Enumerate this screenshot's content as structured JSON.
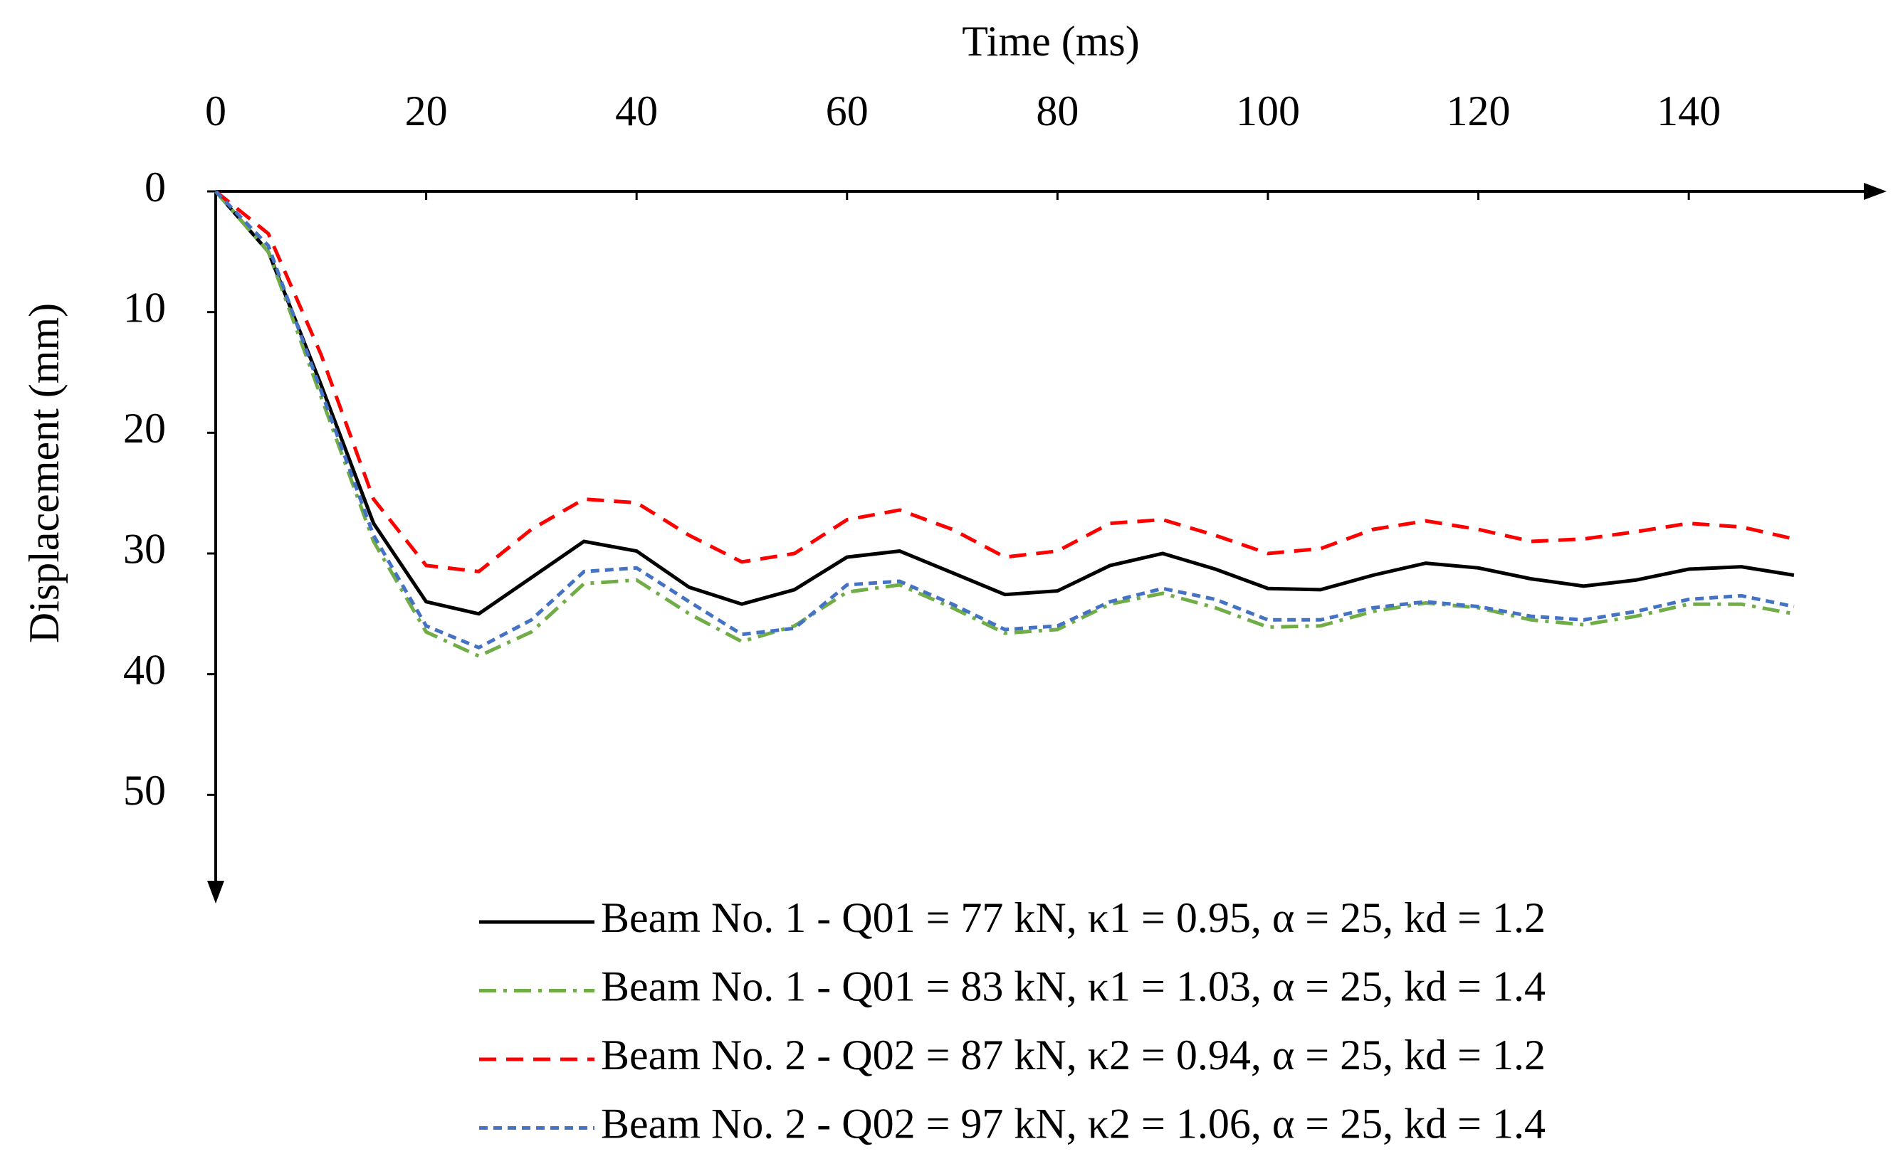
{
  "chart_data": {
    "type": "line",
    "x_label": "Time (ms)",
    "y_label": "Displacement (mm)",
    "x": [
      0,
      5,
      10,
      15,
      20,
      25,
      30,
      35,
      40,
      45,
      50,
      55,
      60,
      65,
      70,
      75,
      80,
      85,
      90,
      95,
      100,
      105,
      110,
      115,
      120,
      125,
      130,
      135,
      140,
      145,
      150
    ],
    "series": [
      {
        "name": "Beam No. 1 - Q01 = 77 kN, κ1 = 0.95, α = 25, kd = 1.2",
        "color": "#000000",
        "dash": "solid",
        "values": [
          0,
          5,
          16,
          27.5,
          34,
          35,
          32,
          29,
          29.8,
          32.8,
          34.2,
          33,
          30.3,
          29.8,
          31.6,
          33.4,
          33.1,
          31,
          30,
          31.3,
          32.9,
          33,
          31.8,
          30.8,
          31.2,
          32.1,
          32.7,
          32.2,
          31.3,
          31.1,
          31.8
        ]
      },
      {
        "name": "Beam No. 1 - Q01 = 83 kN, κ1 = 1.03, α = 25, kd = 1.4",
        "color": "#70ad47",
        "dash": "dashdot",
        "values": [
          0,
          5,
          17,
          29,
          36.5,
          38.5,
          36.5,
          32.5,
          32.2,
          35,
          37.3,
          36,
          33.2,
          32.6,
          34.5,
          36.6,
          36.3,
          34.2,
          33.3,
          34.5,
          36.1,
          36,
          34.8,
          34.1,
          34.5,
          35.5,
          35.9,
          35.2,
          34.2,
          34.2,
          35
        ]
      },
      {
        "name": "Beam No. 2 - Q02 = 87 kN, κ2 = 0.94, α = 25, kd = 1.2",
        "color": "#ff0000",
        "dash": "dashed",
        "values": [
          0,
          3.5,
          13.5,
          25.5,
          31,
          31.5,
          28,
          25.5,
          25.8,
          28.5,
          30.7,
          30,
          27.2,
          26.4,
          28,
          30.3,
          29.8,
          27.5,
          27.2,
          28.5,
          30,
          29.6,
          28,
          27.3,
          28,
          29,
          28.8,
          28.2,
          27.5,
          27.8,
          28.8
        ]
      },
      {
        "name": "Beam No. 2 - Q02 = 97 kN, κ2 = 1.06, α = 25, kd = 1.4",
        "color": "#4472c4",
        "dash": "dotted",
        "values": [
          0,
          4.5,
          16.5,
          28.5,
          36,
          37.8,
          35.5,
          31.5,
          31.2,
          34,
          36.7,
          36.2,
          32.6,
          32.3,
          34.2,
          36.3,
          36,
          34,
          32.9,
          33.8,
          35.5,
          35.5,
          34.5,
          34,
          34.4,
          35.2,
          35.5,
          34.8,
          33.8,
          33.5,
          34.4
        ]
      }
    ],
    "xlim": [
      0,
      158.8
    ],
    "xticks": [
      0,
      20,
      40,
      60,
      80,
      100,
      120,
      140
    ],
    "ylim": [
      0,
      59
    ],
    "yticks": [
      0,
      10,
      20,
      30,
      40,
      50
    ],
    "y_inverted": true,
    "x_axis_position": "top",
    "grid": false,
    "legend": "bottom-right"
  }
}
